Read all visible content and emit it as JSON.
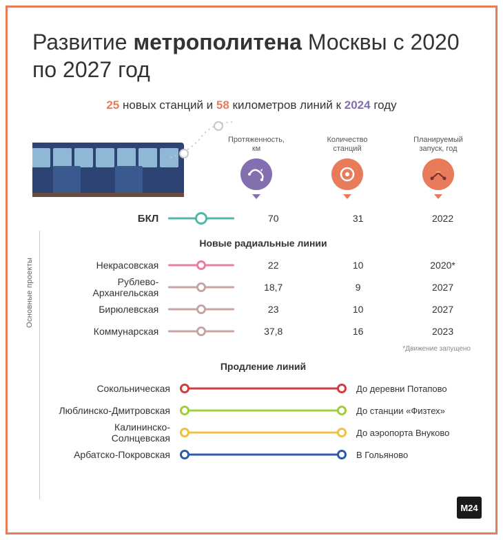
{
  "frame_border_color": "#e87b5a",
  "background": "#ffffff",
  "title": {
    "pre": "Развитие ",
    "bold": "метрополитена",
    "post": " Москвы с 2020 по 2027 год",
    "color": "#333333",
    "fontsize": 32
  },
  "subtitle": {
    "n1": "25",
    "t1": " новых станций и ",
    "n2": "58",
    "t2": " километров линий к ",
    "n3": "2024",
    "t3": " году",
    "orange": "#e87b5a",
    "purple": "#8470b0"
  },
  "side_label": "Основные проекты",
  "columns": {
    "c1": {
      "label": "Протяженность, км",
      "bg": "#8470b0",
      "tri": "#8470b0"
    },
    "c2": {
      "label": "Количество станций",
      "bg": "#e87b5a",
      "tri": "#e87b5a"
    },
    "c3": {
      "label": "Планируемый запуск, год",
      "bg": "#e87b5a",
      "tri": "#e87b5a"
    }
  },
  "bkl": {
    "name": "БКЛ",
    "length": "70",
    "stations": "31",
    "year": "2022",
    "color": "#4fb7a8"
  },
  "section_radial": "Новые радиальные линии",
  "radial_lines": [
    {
      "name": "Некрасовская",
      "length": "22",
      "stations": "10",
      "year": "2020*",
      "color": "#e87ea3"
    },
    {
      "name": "Рублево-Архангельская",
      "length": "18,7",
      "stations": "9",
      "year": "2027",
      "color": "#c9a3a3"
    },
    {
      "name": "Бирюлевская",
      "length": "23",
      "stations": "10",
      "year": "2027",
      "color": "#c9a3a3"
    },
    {
      "name": "Коммунарская",
      "length": "37,8",
      "stations": "16",
      "year": "2023",
      "color": "#c9a3a3"
    }
  ],
  "note": "*Движение запущено",
  "section_ext": "Продление линий",
  "ext_lines": [
    {
      "name": "Сокольническая",
      "dest": "До деревни Потапово",
      "color": "#d63a3a"
    },
    {
      "name": "Люблинско-Дмитровская",
      "dest": "До станции «Физтех»",
      "color": "#9dcf3a"
    },
    {
      "name": "Калининско-Солнцевская",
      "dest": "До аэропорта Внуково",
      "color": "#f0c040"
    },
    {
      "name": "Арбатско-Покровская",
      "dest": "В Гольяново",
      "color": "#2d5aa6"
    }
  ],
  "logo": "М24",
  "train": {
    "body": "#2d4373",
    "window": "#8fb8d6",
    "rail": "#6a4a3c"
  }
}
